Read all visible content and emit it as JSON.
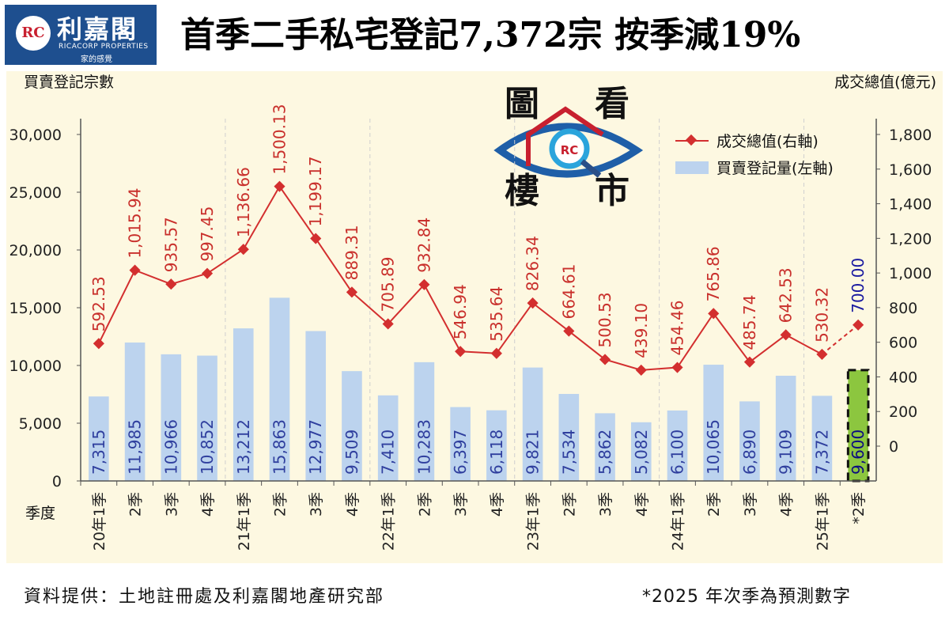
{
  "header": {
    "logo_mark": "RC",
    "logo_cn": "利嘉閣",
    "logo_en": "RICACORP PROPERTIES",
    "logo_tagline": "家的感覺",
    "title": "首季二手私宅登記7,372宗  按季減19%"
  },
  "watermark": {
    "chars": [
      "圖",
      "看",
      "樓",
      "市"
    ],
    "mark": "RC"
  },
  "footer": {
    "source": "資料提供：土地註冊處及利嘉閣地產研究部",
    "note": "*2025 年次季為預測數字"
  },
  "chart_data": {
    "type": "bar",
    "left_axis_title": "買賣登記宗數",
    "right_axis_title": "成交總值(億元)",
    "x_axis_title": "季度",
    "left_ticks": [
      "0",
      "5,000",
      "10,000",
      "15,000",
      "20,000",
      "25,000",
      "30,000"
    ],
    "right_ticks": [
      "0",
      "200",
      "400",
      "600",
      "800",
      "1,000",
      "1,200",
      "1,400",
      "1,600",
      "1,800"
    ],
    "ylim_left": [
      0,
      30000
    ],
    "ylim_right_labeled": [
      0,
      1800
    ],
    "categories": [
      "20年1季",
      "2季",
      "3季",
      "4季",
      "21年1季",
      "2季",
      "3季",
      "4季",
      "22年1季",
      "2季",
      "3季",
      "4季",
      "23年1季",
      "2季",
      "3季",
      "4季",
      "24年1季",
      "2季",
      "3季",
      "4季",
      "25年1季",
      "*2季"
    ],
    "series": [
      {
        "name": "買賣登記量(左軸)",
        "axis": "left",
        "color": "#bcd3ee",
        "forecast_color": "#8cc63f",
        "values": [
          7315,
          11985,
          10966,
          10852,
          13212,
          15863,
          12977,
          9509,
          7410,
          10283,
          6397,
          6118,
          9821,
          7534,
          5862,
          5082,
          6100,
          10065,
          6890,
          9109,
          7372,
          9600
        ],
        "labels": [
          "7,315",
          "11,985",
          "10,966",
          "10,852",
          "13,212",
          "15,863",
          "12,977",
          "9,509",
          "7,410",
          "10,283",
          "6,397",
          "6,118",
          "9,821",
          "7,534",
          "5,862",
          "5,082",
          "6,100",
          "10,065",
          "6,890",
          "9,109",
          "7,372",
          "9,600"
        ]
      },
      {
        "name": "成交總值(右軸)",
        "axis": "right",
        "color": "#d32f2f",
        "forecast_color": "#1a1aa0",
        "values": [
          592.53,
          1015.94,
          935.57,
          997.45,
          1136.66,
          1500.13,
          1199.17,
          889.31,
          705.89,
          932.84,
          546.94,
          535.64,
          826.34,
          664.61,
          500.53,
          439.1,
          454.46,
          765.86,
          485.74,
          642.53,
          530.32,
          700.0
        ],
        "labels": [
          "592.53",
          "1,015.94",
          "935.57",
          "997.45",
          "1,136.66",
          "1,500.13",
          "1,199.17",
          "889.31",
          "705.89",
          "932.84",
          "546.94",
          "535.64",
          "826.34",
          "664.61",
          "500.53",
          "439.10",
          "454.46",
          "765.86",
          "485.74",
          "642.53",
          "530.32",
          "700.00"
        ]
      }
    ],
    "forecast_index": 21,
    "year_dividers_after": [
      3,
      7,
      11,
      15,
      19
    ],
    "legend_position": "top-right"
  }
}
